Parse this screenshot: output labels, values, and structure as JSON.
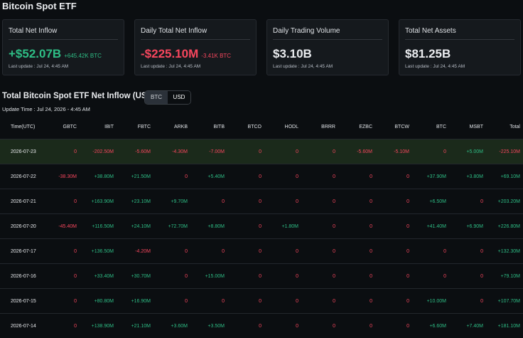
{
  "header": {
    "title": "Bitcoin Spot ETF"
  },
  "cards": [
    {
      "title": "Total Net Inflow",
      "value": "+$52.07B",
      "sub": "+645.42K BTC",
      "update": "Last update : Jul 24, 4:45 AM"
    },
    {
      "title": "Daily Total Net Inflow",
      "value": "-$225.10M",
      "sub": "-3.41K BTC",
      "update": "Last update : Jul 24, 4:45 AM"
    },
    {
      "title": "Daily Trading Volume",
      "value": "$3.10B",
      "update": "Last update : Jul 24, 4:45 AM"
    },
    {
      "title": "Total Net Assets",
      "value": "$81.25B",
      "update": "Last update : Jul 24, 4:45 AM"
    }
  ],
  "section": {
    "title": "Total Bitcoin Spot ETF Net Inflow (USD)",
    "toggle": [
      "BTC",
      "USD"
    ],
    "active": "USD",
    "update_time": "Update Time : Jul 24, 2026 - 4:45 AM"
  },
  "table": {
    "columns": [
      "Time(UTC)",
      "GBTC",
      "IBIT",
      "FBTC",
      "ARKB",
      "BITB",
      "BTCO",
      "HODL",
      "BRRR",
      "EZBC",
      "BTCW",
      "BTC",
      "MSBT",
      "Total"
    ],
    "rows": [
      {
        "highlight": true,
        "cells": [
          "2026-07-23",
          "0",
          "-202.50M",
          "-5.60M",
          "-4.30M",
          "-7.00M",
          "0",
          "0",
          "0",
          "-5.60M",
          "-5.10M",
          "0",
          "+5.00M",
          "-225.10M"
        ]
      },
      {
        "cells": [
          "2026-07-22",
          "-38.30M",
          "+38.80M",
          "+21.50M",
          "0",
          "+5.40M",
          "0",
          "0",
          "0",
          "0",
          "0",
          "+37.90M",
          "+3.80M",
          "+69.10M"
        ]
      },
      {
        "cells": [
          "2026-07-21",
          "0",
          "+163.90M",
          "+23.10M",
          "+9.70M",
          "0",
          "0",
          "0",
          "0",
          "0",
          "0",
          "+6.50M",
          "0",
          "+203.20M"
        ]
      },
      {
        "cells": [
          "2026-07-20",
          "-45.40M",
          "+116.50M",
          "+24.10M",
          "+72.70M",
          "+8.80M",
          "0",
          "+1.80M",
          "0",
          "0",
          "0",
          "+41.40M",
          "+6.90M",
          "+226.80M"
        ]
      },
      {
        "cells": [
          "2026-07-17",
          "0",
          "+136.50M",
          "-4.20M",
          "0",
          "0",
          "0",
          "0",
          "0",
          "0",
          "0",
          "0",
          "0",
          "+132.30M"
        ]
      },
      {
        "cells": [
          "2026-07-16",
          "0",
          "+33.40M",
          "+30.70M",
          "0",
          "+15.00M",
          "0",
          "0",
          "0",
          "0",
          "0",
          "0",
          "0",
          "+79.10M"
        ]
      },
      {
        "cells": [
          "2026-07-15",
          "0",
          "+80.80M",
          "+16.90M",
          "0",
          "0",
          "0",
          "0",
          "0",
          "0",
          "0",
          "+10.00M",
          "0",
          "+107.70M"
        ]
      },
      {
        "cells": [
          "2026-07-14",
          "0",
          "+138.90M",
          "+21.10M",
          "+3.60M",
          "+3.50M",
          "0",
          "0",
          "0",
          "0",
          "0",
          "+6.60M",
          "+7.40M",
          "+181.10M"
        ]
      }
    ]
  }
}
